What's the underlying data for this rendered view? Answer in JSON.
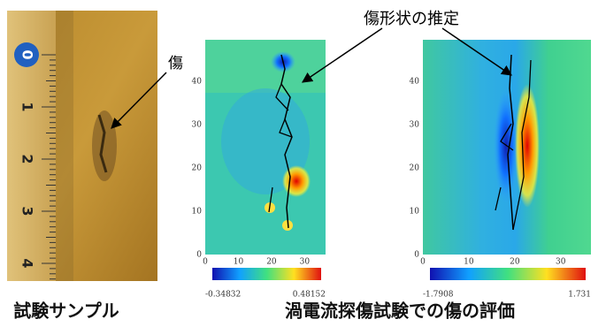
{
  "sample": {
    "ruler_labels": [
      "0",
      "1",
      "2",
      "3",
      "4"
    ],
    "defect_label": "傷",
    "caption": "試験サンプル"
  },
  "evaluation": {
    "annotation": "傷形状の推定",
    "caption": "渦電流探傷試験での傷の評価",
    "panels": [
      {
        "xticks": [
          0,
          10,
          20,
          30
        ],
        "yticks": [
          0,
          10,
          20,
          30,
          40
        ],
        "colorbar_min": "-0.34832",
        "colorbar_max": "0.48152"
      },
      {
        "xticks": [
          0,
          10,
          20,
          30
        ],
        "yticks": [
          0,
          10,
          20,
          30,
          40
        ],
        "colorbar_min": "-1.7908",
        "colorbar_max": "1.731"
      }
    ]
  }
}
